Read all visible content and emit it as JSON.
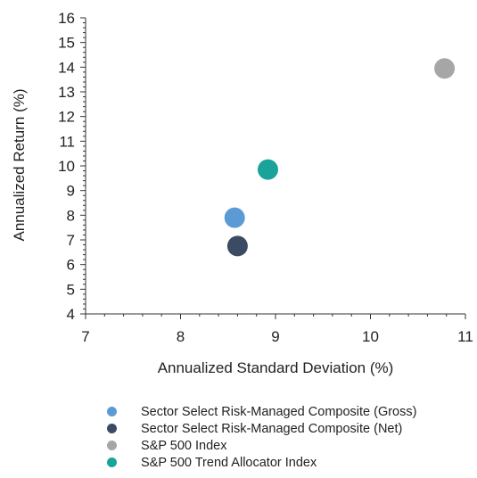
{
  "chart_data": {
    "type": "scatter",
    "xlabel": "Annualized Standard Deviation (%)",
    "ylabel": "Annualized Return (%)",
    "xlim": [
      7,
      11
    ],
    "ylim": [
      4,
      16
    ],
    "xticks": [
      "7",
      "8",
      "9",
      "10",
      "11"
    ],
    "yticks": [
      "4",
      "5",
      "6",
      "7",
      "8",
      "9",
      "10",
      "11",
      "12",
      "13",
      "14",
      "15",
      "16"
    ],
    "grid": false,
    "legend_position": "bottom",
    "series": [
      {
        "name": "Sector Select Risk-Managed Composite (Gross)",
        "color": "#5b9bd5",
        "x": [
          8.57
        ],
        "y": [
          7.9
        ]
      },
      {
        "name": "Sector Select Risk-Managed Composite (Net)",
        "color": "#3b4b63",
        "x": [
          8.6
        ],
        "y": [
          6.75
        ]
      },
      {
        "name": "S&P 500 Index",
        "color": "#a6a6a6",
        "x": [
          10.78
        ],
        "y": [
          13.95
        ]
      },
      {
        "name": "S&P 500 Trend Allocator Index",
        "color": "#1aa39a",
        "x": [
          8.92
        ],
        "y": [
          9.85
        ]
      }
    ]
  }
}
